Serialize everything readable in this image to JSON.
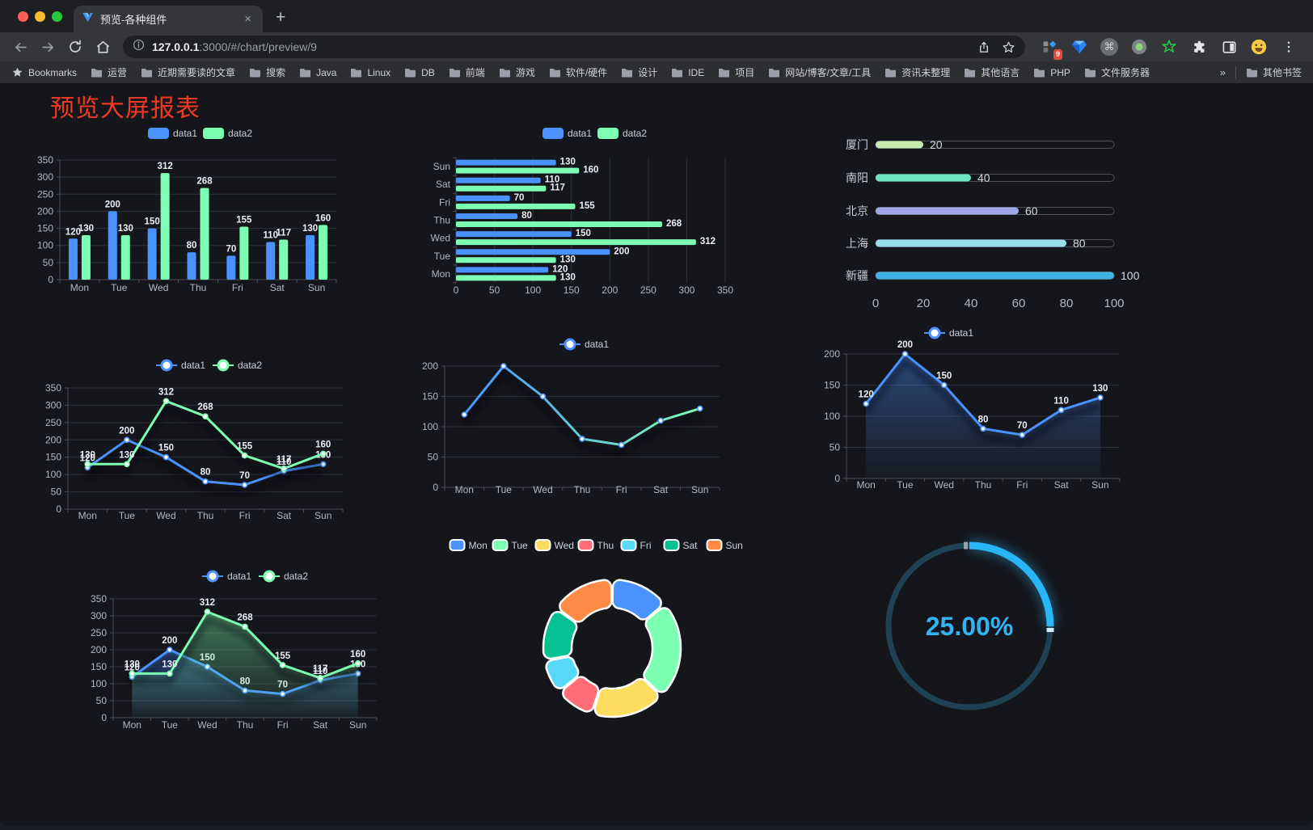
{
  "browser": {
    "tab": {
      "title": "预览-各种组件",
      "close": "×",
      "new_tab": "+"
    },
    "address": {
      "host": "127.0.0.1",
      "rest": ":3000/#/chart/preview/9"
    },
    "extensions_badge": "9",
    "bookmarks": {
      "label": "Bookmarks",
      "folders": [
        "运营",
        "近期需要读的文章",
        "搜索",
        "Java",
        "Linux",
        "DB",
        "前端",
        "游戏",
        "软件/硬件",
        "设计",
        "IDE",
        "项目",
        "网站/博客/文章/工具",
        "资讯未整理",
        "其他语言",
        "PHP",
        "文件服务器"
      ],
      "overflow": "»",
      "other": "其他书签"
    }
  },
  "page": {
    "title": "预览大屏报表",
    "title_color": "#ee3a24"
  },
  "chart_data": [
    {
      "id": "grouped-bar",
      "type": "bar",
      "categories": [
        "Mon",
        "Tue",
        "Wed",
        "Thu",
        "Fri",
        "Sat",
        "Sun"
      ],
      "series": [
        {
          "name": "data1",
          "color": "#4992ff",
          "values": [
            120,
            200,
            150,
            80,
            70,
            110,
            130
          ]
        },
        {
          "name": "data2",
          "color": "#7cffb2",
          "values": [
            130,
            130,
            312,
            268,
            155,
            117,
            160
          ]
        }
      ],
      "ylim": [
        0,
        350
      ],
      "ytick_step": 50,
      "legend_position": "top",
      "grid": true
    },
    {
      "id": "horizontal-bar",
      "type": "bar",
      "orientation": "horizontal",
      "categories": [
        "Mon",
        "Tue",
        "Wed",
        "Thu",
        "Fri",
        "Sat",
        "Sun"
      ],
      "series": [
        {
          "name": "data1",
          "color": "#4992ff",
          "values": [
            120,
            200,
            150,
            80,
            70,
            110,
            130
          ]
        },
        {
          "name": "data2",
          "color": "#7cffb2",
          "values": [
            130,
            130,
            312,
            268,
            155,
            117,
            160
          ]
        }
      ],
      "xlim": [
        0,
        350
      ],
      "xtick_step": 50,
      "legend_position": "top"
    },
    {
      "id": "progress-bars",
      "type": "bar",
      "subtype": "capsule-progress",
      "categories": [
        "厦门",
        "南阳",
        "北京",
        "上海",
        "新疆"
      ],
      "values": [
        20,
        40,
        60,
        80,
        100
      ],
      "colors": [
        "#c4ebad",
        "#6be6c1",
        "#a0a7e6",
        "#96dee8",
        "#3fb1e3"
      ],
      "xlim": [
        0,
        100
      ],
      "xticks": [
        0,
        20,
        40,
        60,
        80,
        100
      ]
    },
    {
      "id": "two-series-line",
      "type": "line",
      "categories": [
        "Mon",
        "Tue",
        "Wed",
        "Thu",
        "Fri",
        "Sat",
        "Sun"
      ],
      "series": [
        {
          "name": "data1",
          "color": "#4992ff",
          "values": [
            120,
            200,
            150,
            80,
            70,
            110,
            130
          ]
        },
        {
          "name": "data2",
          "color": "#7cffb2",
          "values": [
            130,
            130,
            312,
            268,
            155,
            117,
            160
          ]
        }
      ],
      "ylim": [
        0,
        350
      ],
      "ytick_step": 50,
      "labels": true,
      "legend_position": "top"
    },
    {
      "id": "gradient-line",
      "type": "line",
      "categories": [
        "Mon",
        "Tue",
        "Wed",
        "Thu",
        "Fri",
        "Sat",
        "Sun"
      ],
      "series": [
        {
          "name": "data1",
          "color_gradient": [
            "#4992ff",
            "#7cffb2"
          ],
          "values": [
            120,
            200,
            150,
            80,
            70,
            110,
            130
          ]
        }
      ],
      "ylim": [
        0,
        200
      ],
      "ytick_step": 50,
      "labels": false,
      "legend_position": "top"
    },
    {
      "id": "area-line",
      "type": "area",
      "categories": [
        "Mon",
        "Tue",
        "Wed",
        "Thu",
        "Fri",
        "Sat",
        "Sun"
      ],
      "series": [
        {
          "name": "data1",
          "color": "#4992ff",
          "values": [
            120,
            200,
            150,
            80,
            70,
            110,
            130
          ]
        }
      ],
      "ylim": [
        0,
        200
      ],
      "ytick_step": 50,
      "labels": true,
      "legend_position": "top"
    },
    {
      "id": "two-series-area",
      "type": "area",
      "categories": [
        "Mon",
        "Tue",
        "Wed",
        "Thu",
        "Fri",
        "Sat",
        "Sun"
      ],
      "series": [
        {
          "name": "data1",
          "color": "#4992ff",
          "values": [
            120,
            200,
            150,
            80,
            70,
            110,
            130
          ]
        },
        {
          "name": "data2",
          "color": "#7cffb2",
          "values": [
            130,
            130,
            312,
            268,
            155,
            117,
            160
          ]
        }
      ],
      "ylim": [
        0,
        350
      ],
      "ytick_step": 50,
      "labels": true,
      "legend_position": "top"
    },
    {
      "id": "donut",
      "type": "pie",
      "inner_radius": "58%",
      "categories": [
        "Mon",
        "Tue",
        "Wed",
        "Thu",
        "Fri",
        "Sat",
        "Sun"
      ],
      "values": [
        120,
        200,
        150,
        80,
        70,
        110,
        130
      ],
      "colors": [
        "#4992ff",
        "#7cffb2",
        "#fddd60",
        "#ff6e76",
        "#58d9f9",
        "#05c091",
        "#ff8a45"
      ],
      "legend_position": "top"
    },
    {
      "id": "gauge",
      "type": "gauge",
      "value": 25,
      "label": "25.00%",
      "color": "#29b6f6",
      "track_color": "#1e4254"
    }
  ]
}
